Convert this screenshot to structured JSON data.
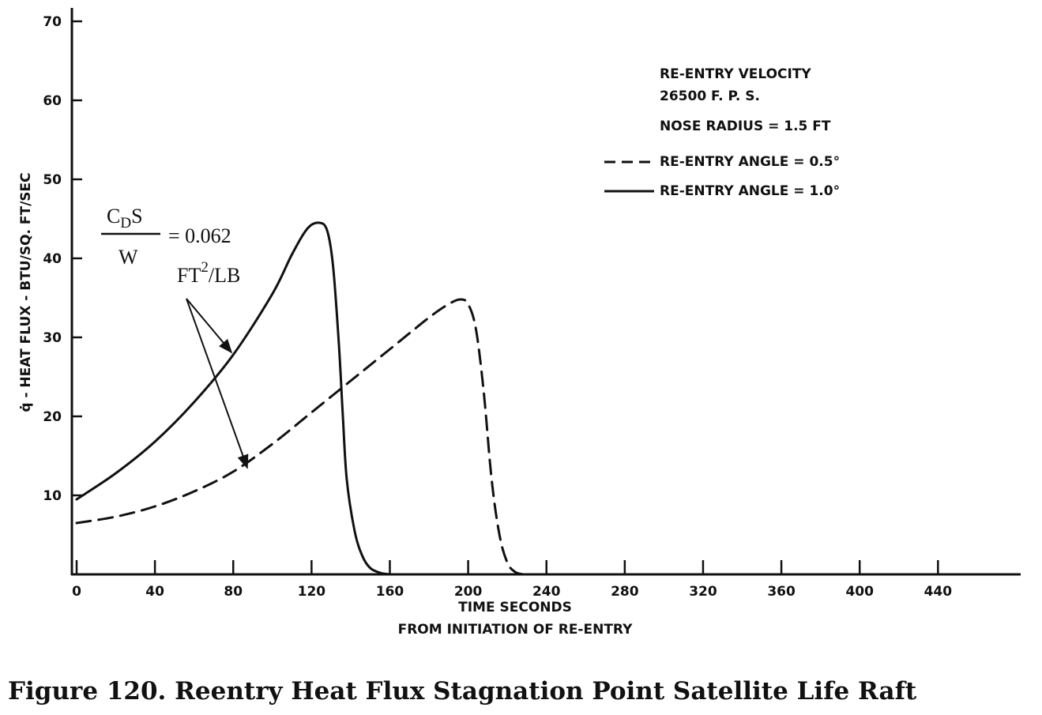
{
  "chart_data": {
    "type": "line",
    "xlabel_line1": "TIME SECONDS",
    "xlabel_line2": "FROM INITIATION OF RE-ENTRY",
    "ylabel": "q̇ - HEAT FLUX - BTU/SQ. FT/SEC",
    "xlim": [
      0,
      480
    ],
    "ylim": [
      0,
      70
    ],
    "x_ticks": [
      0,
      40,
      80,
      120,
      160,
      200,
      240,
      280,
      320,
      360,
      400,
      440
    ],
    "x_tick_labels": [
      "0",
      "40",
      "80",
      "120",
      "160",
      "200",
      "240",
      "280",
      "320",
      "360",
      "400",
      "440"
    ],
    "y_ticks": [
      10,
      20,
      30,
      40,
      50,
      60,
      70
    ],
    "y_tick_labels": [
      "10",
      "20",
      "30",
      "40",
      "50",
      "60",
      "70"
    ],
    "grid": false,
    "legend_header": [
      "RE-ENTRY VELOCITY",
      "26500 F. P. S.",
      "NOSE RADIUS = 1.5 FT"
    ],
    "legend_position": "top-right",
    "series": [
      {
        "name": "RE-ENTRY ANGLE = 0.5°",
        "style": "dashed",
        "x": [
          0,
          20,
          40,
          60,
          80,
          100,
          120,
          140,
          160,
          180,
          190,
          196,
          200,
          204,
          208,
          212,
          216,
          220,
          224,
          228
        ],
        "y": [
          6.5,
          7.3,
          8.6,
          10.5,
          13,
          16.5,
          20.5,
          24.5,
          28.5,
          32.5,
          34.2,
          34.8,
          34.2,
          31,
          23,
          12,
          5,
          1.5,
          0.3,
          0
        ],
        "stroke": "#111111"
      },
      {
        "name": "RE-ENTRY ANGLE = 1.0°",
        "style": "solid",
        "x": [
          0,
          20,
          40,
          60,
          80,
          100,
          110,
          118,
          124,
          128,
          131,
          134,
          136,
          138,
          142,
          146,
          150,
          155,
          160
        ],
        "y": [
          9.5,
          12.8,
          16.8,
          21.8,
          27.8,
          35.5,
          40.5,
          43.8,
          44.5,
          43.5,
          39,
          29,
          20,
          12,
          5.5,
          2.3,
          0.8,
          0.2,
          0
        ],
        "stroke": "#111111"
      }
    ],
    "annotation": {
      "numerator": "C",
      "numerator_sub": "D",
      "numerator_tail": "S",
      "denominator": "W",
      "equals": "= 0.062",
      "units_base": "FT",
      "units_sup": "2",
      "units_tail": "/LB"
    }
  },
  "caption": "Figure 120.  Reentry Heat Flux Stagnation Point Satellite Life Raft"
}
